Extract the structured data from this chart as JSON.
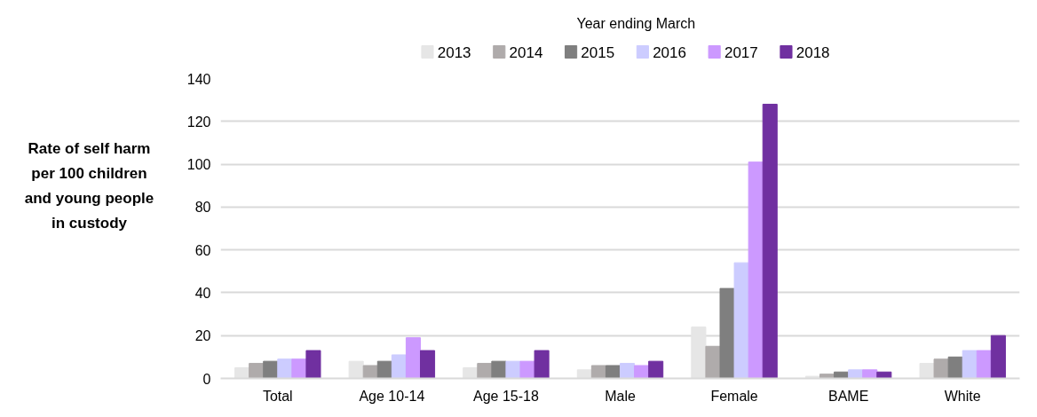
{
  "chart_data": {
    "type": "bar",
    "ylabel": "Rate of self harm per 100 children and young people in custody",
    "legend_title": "Year ending March",
    "categories": [
      "Total",
      "Age 10-14",
      "Age 15-18",
      "Male",
      "Female",
      "BAME",
      "White"
    ],
    "series": [
      {
        "name": "2013",
        "color": "#e6e6e6",
        "values": [
          5,
          8,
          5,
          4,
          24,
          1,
          7
        ]
      },
      {
        "name": "2014",
        "color": "#afabab",
        "values": [
          7,
          6,
          7,
          6,
          15,
          2,
          9
        ]
      },
      {
        "name": "2015",
        "color": "#7f7f7f",
        "values": [
          8,
          8,
          8,
          6,
          42,
          3,
          10
        ]
      },
      {
        "name": "2016",
        "color": "#ccccff",
        "values": [
          9,
          11,
          8,
          7,
          54,
          4,
          13
        ]
      },
      {
        "name": "2017",
        "color": "#cc99ff",
        "values": [
          9,
          19,
          8,
          6,
          101,
          4,
          13
        ]
      },
      {
        "name": "2018",
        "color": "#7030a0",
        "values": [
          13,
          13,
          13,
          8,
          128,
          3,
          20
        ]
      }
    ],
    "ylim": [
      0,
      140
    ],
    "yticks": [
      0,
      20,
      40,
      60,
      80,
      100,
      120,
      140
    ],
    "grid": "y",
    "legend": "top"
  }
}
